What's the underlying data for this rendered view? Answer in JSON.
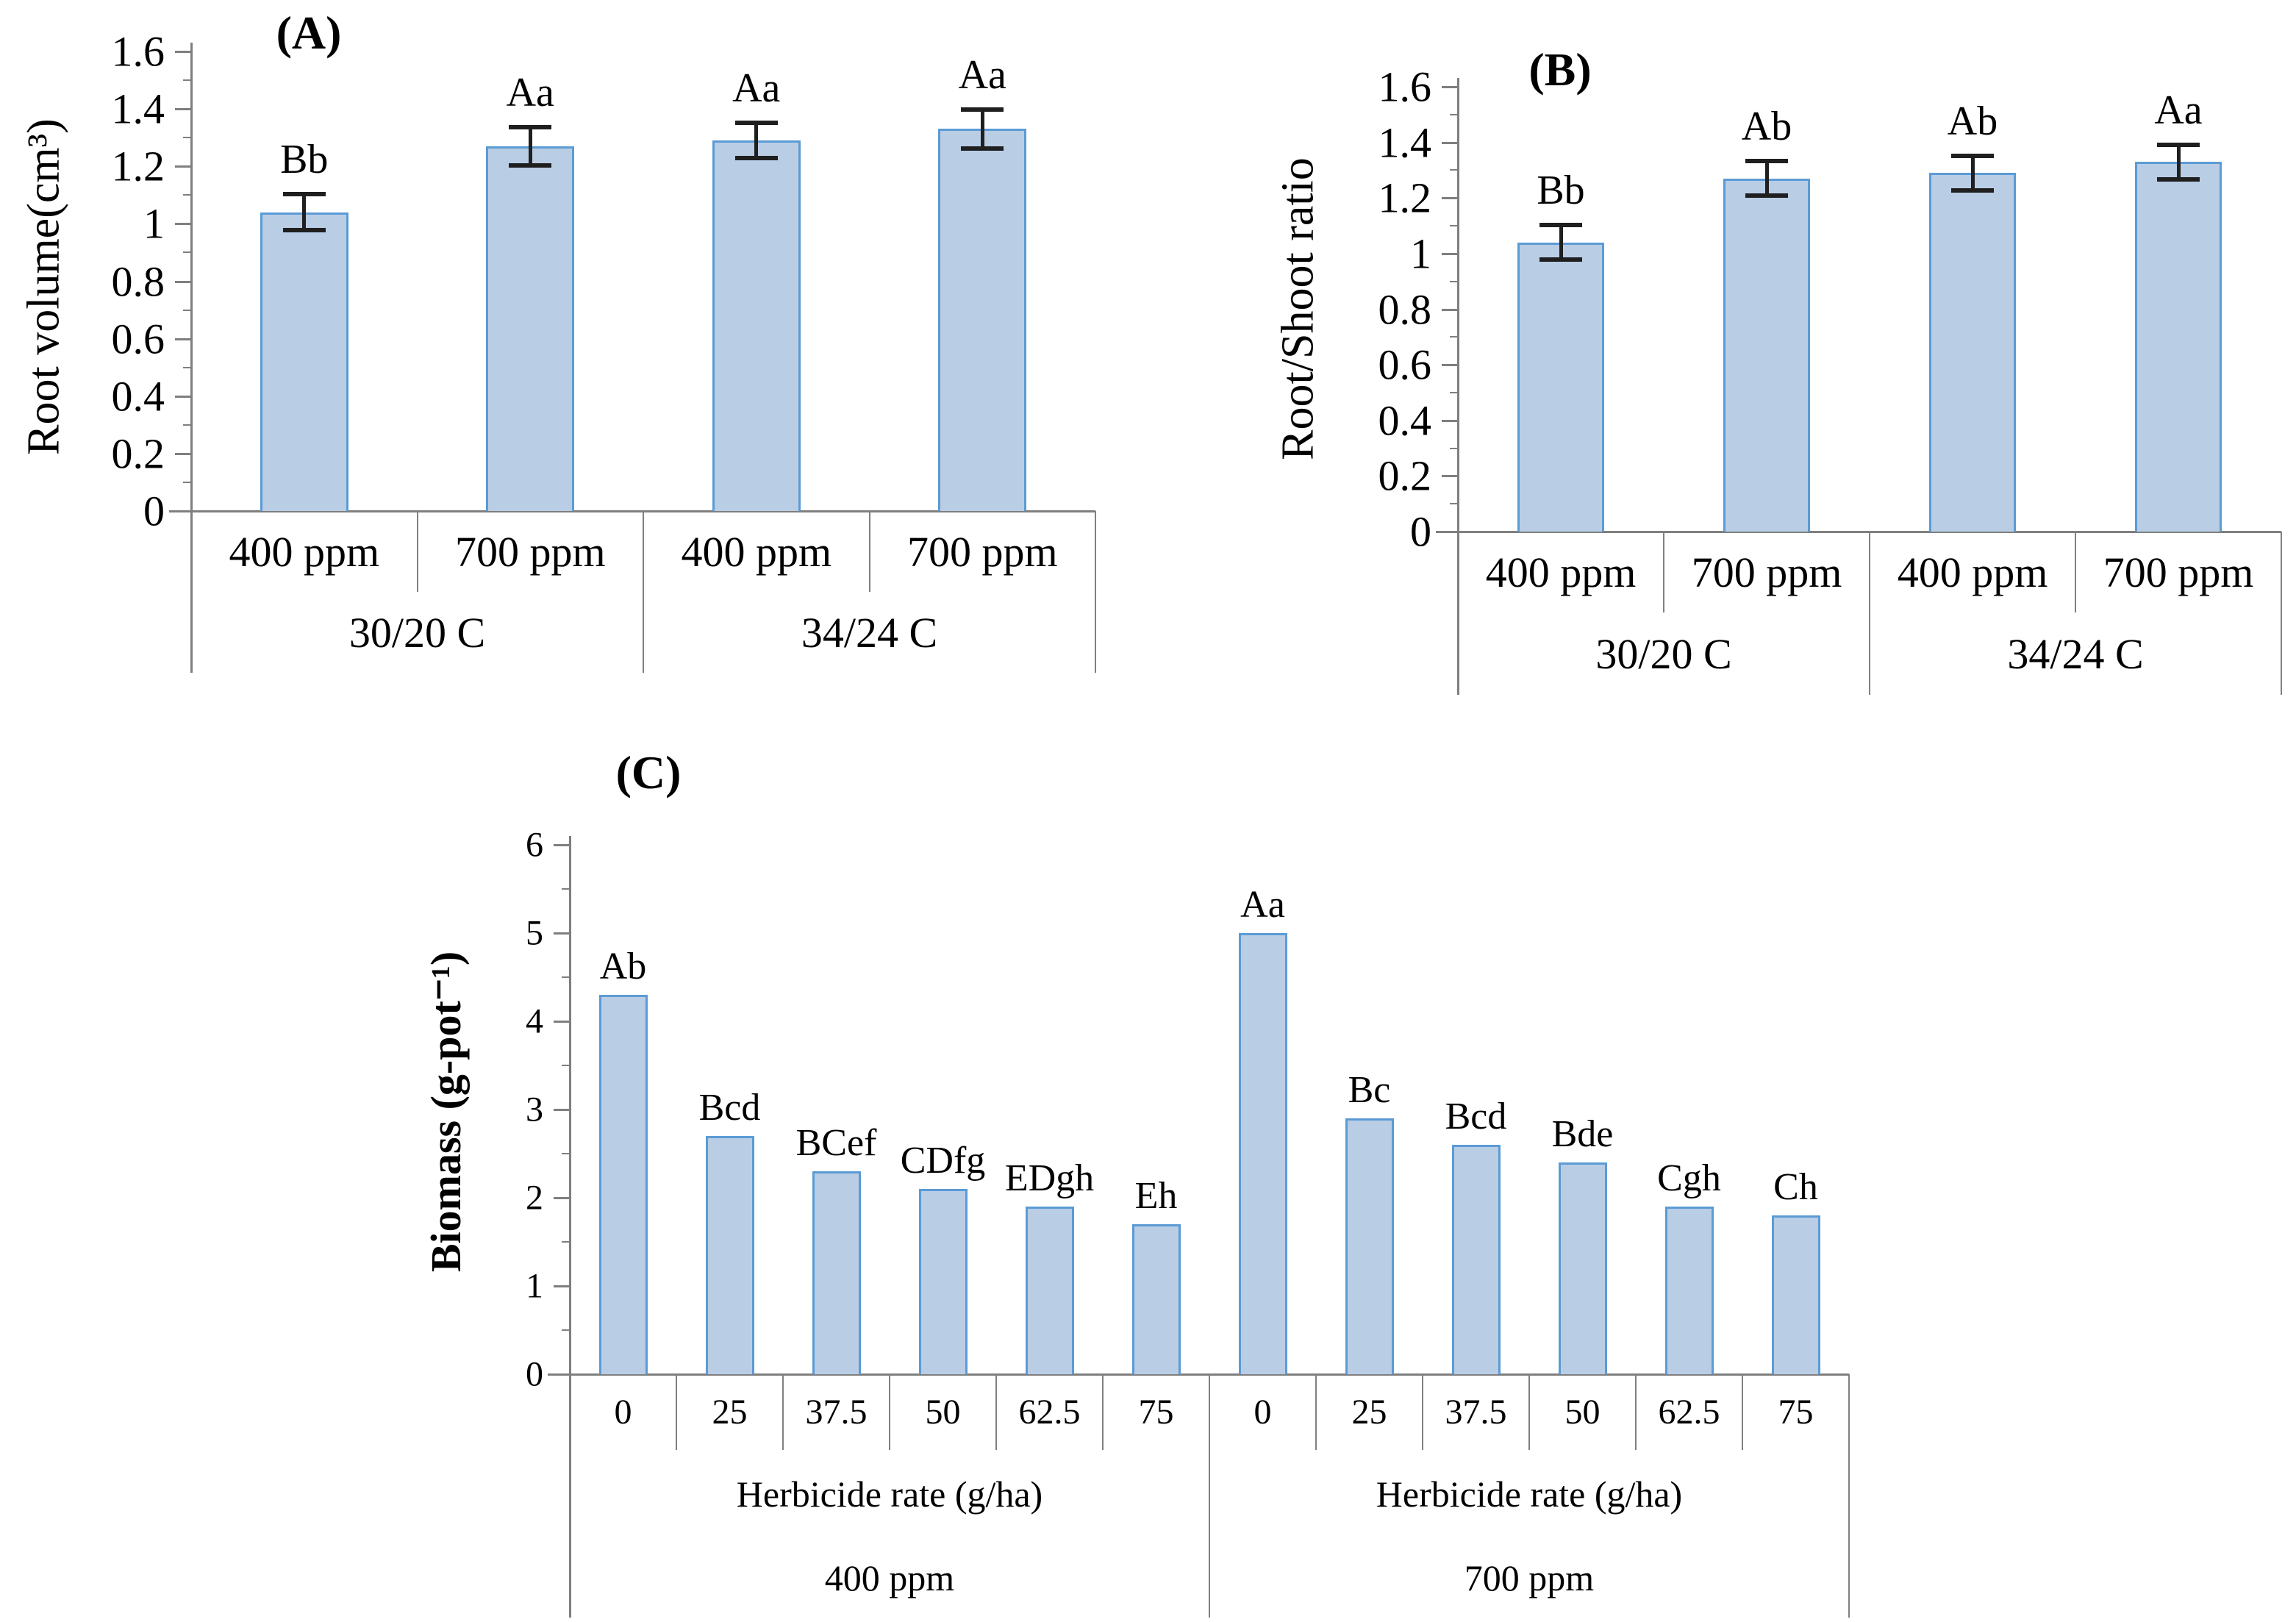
{
  "figure": {
    "background": "#ffffff",
    "colors": {
      "bar_fill": "#b9cde5",
      "bar_border": "#5b9bd5",
      "axis_line": "#7f7f7f",
      "table_line": "#808080",
      "error_bar": "#1f1f1f",
      "text": "#000000"
    }
  },
  "chart_data": [
    {
      "type": "bar",
      "panel": "(A)",
      "ylabel": "Root volume(cm³)",
      "xlabel": "",
      "ylim": [
        0,
        1.6
      ],
      "ytick_labels": [
        "0",
        "0.2",
        "0.4",
        "0.6",
        "0.8",
        "1",
        "1.2",
        "1.4",
        "1.6"
      ],
      "grid": false,
      "legend": null,
      "groups": [
        {
          "label": "30/20 C",
          "categories": [
            "400 ppm",
            "700 ppm"
          ]
        },
        {
          "label": "34/24 C",
          "categories": [
            "400 ppm",
            "700 ppm"
          ]
        }
      ],
      "values": [
        1.04,
        1.27,
        1.29,
        1.33
      ],
      "errors": [
        0.065,
        0.07,
        0.065,
        0.07
      ],
      "bar_labels": [
        "Bb",
        "Aa",
        "Aa",
        "Aa"
      ]
    },
    {
      "type": "bar",
      "panel": "(B)",
      "ylabel": "Root/Shoot ratio",
      "xlabel": "",
      "ylim": [
        0,
        1.6
      ],
      "ytick_labels": [
        "0",
        "0.2",
        "0.4",
        "0.6",
        "0.8",
        "1",
        "1.2",
        "1.4",
        "1.6"
      ],
      "grid": false,
      "legend": null,
      "groups": [
        {
          "label": "30/20 C",
          "categories": [
            "400 ppm",
            "700 ppm"
          ]
        },
        {
          "label": "34/24 C",
          "categories": [
            "400 ppm",
            "700 ppm"
          ]
        }
      ],
      "values": [
        1.04,
        1.27,
        1.29,
        1.33
      ],
      "errors": [
        0.065,
        0.065,
        0.065,
        0.065
      ],
      "bar_labels": [
        "Bb",
        "Ab",
        "Ab",
        "Aa"
      ]
    },
    {
      "type": "bar",
      "panel": "(C)",
      "ylabel": "Biomass (g-pot⁻¹)",
      "xlabel": "Herbicide rate (g/ha)",
      "ylim": [
        0,
        6
      ],
      "ytick_labels": [
        "0",
        "1",
        "2",
        "3",
        "4",
        "5",
        "6"
      ],
      "grid": false,
      "legend": null,
      "groups": [
        {
          "label": "400 ppm",
          "sub_label": "Herbicide rate (g/ha)",
          "categories": [
            "0",
            "25",
            "37.5",
            "50",
            "62.5",
            "75"
          ]
        },
        {
          "label": "700 ppm",
          "sub_label": "Herbicide rate (g/ha)",
          "categories": [
            "0",
            "25",
            "37.5",
            "50",
            "62.5",
            "75"
          ]
        }
      ],
      "values": [
        4.3,
        2.7,
        2.3,
        2.1,
        1.9,
        1.7,
        5.0,
        2.9,
        2.6,
        2.4,
        1.9,
        1.8
      ],
      "errors": null,
      "bar_labels": [
        "Ab",
        "Bcd",
        "BCef",
        "CDfg",
        "EDgh",
        "Eh",
        "Aa",
        "Bc",
        "Bcd",
        "Bde",
        "Cgh",
        "Ch"
      ]
    }
  ]
}
